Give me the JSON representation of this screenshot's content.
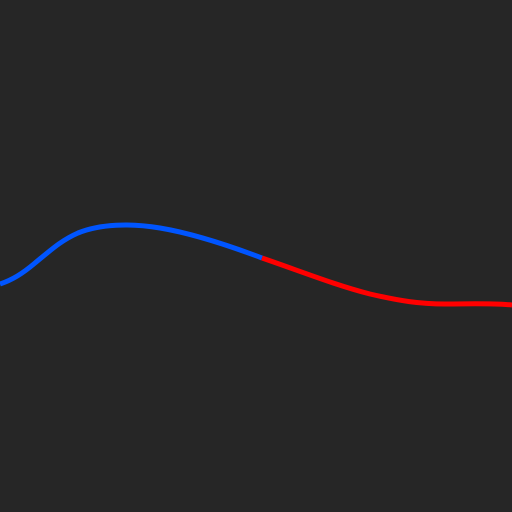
{
  "canvas": {
    "background_color": "#262626"
  },
  "curve": {
    "segments": [
      {
        "name": "left-segment",
        "color": "#0055ff"
      },
      {
        "name": "right-segment",
        "color": "#ff0000"
      }
    ]
  }
}
